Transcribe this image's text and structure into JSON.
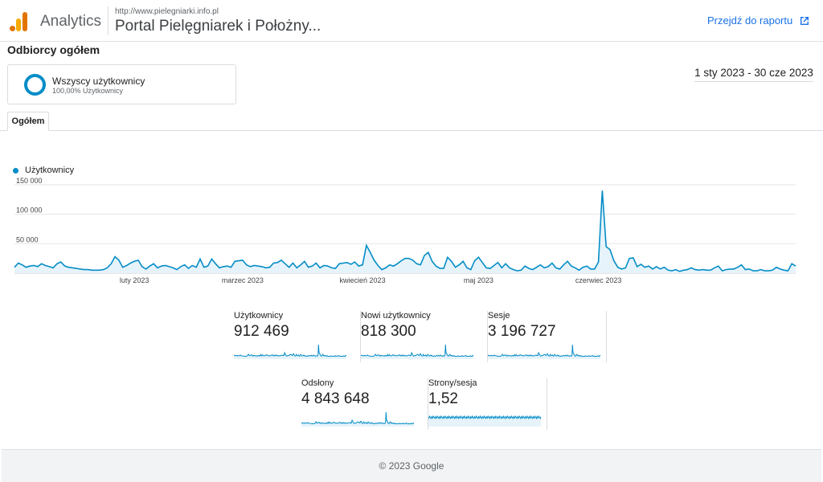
{
  "header": {
    "app_name": "Analytics",
    "site_url": "http://www.pielegniarki.info.pl",
    "site_name": "Portal Pielęgniarek i Położny...",
    "report_link": "Przejdź do raportu"
  },
  "page_title": "Odbiorcy ogółem",
  "segment": {
    "name": "Wszyscy użytkownicy",
    "sub": "100,00% Użytkownicy"
  },
  "date_range": "1 sty 2023 - 30 cze 2023",
  "tab": "Ogółem",
  "colors": {
    "accent": "#058dc7",
    "link": "#1a73e8"
  },
  "chart_data": {
    "type": "area",
    "series": [
      {
        "name": "Użytkownicy",
        "values": [
          10000,
          17000,
          14000,
          10000,
          12000,
          13000,
          11000,
          16000,
          13000,
          11000,
          9000,
          16000,
          19000,
          12000,
          10000,
          9000,
          8000,
          7000,
          6000,
          6000,
          5000,
          5000,
          5000,
          6000,
          9000,
          16000,
          28000,
          22000,
          10000,
          13000,
          17000,
          20000,
          22000,
          11000,
          7000,
          12000,
          16000,
          9000,
          12000,
          13000,
          11000,
          9000,
          6000,
          11000,
          14000,
          8000,
          13000,
          10000,
          24000,
          10000,
          12000,
          24000,
          16000,
          9000,
          11000,
          12000,
          10000,
          20000,
          21000,
          22000,
          14000,
          11000,
          13000,
          12000,
          11000,
          9000,
          10000,
          17000,
          18000,
          22000,
          16000,
          10000,
          17000,
          9000,
          14000,
          20000,
          10000,
          12000,
          17000,
          9000,
          13000,
          12000,
          9000,
          8000,
          16000,
          17000,
          18000,
          15000,
          19000,
          12000,
          14000,
          47000,
          35000,
          22000,
          13000,
          6000,
          9000,
          14000,
          12000,
          16000,
          21000,
          25000,
          25000,
          22000,
          16000,
          14000,
          30000,
          35000,
          20000,
          12000,
          8000,
          8000,
          27000,
          20000,
          10000,
          14000,
          20000,
          9000,
          6000,
          21000,
          27000,
          18000,
          9000,
          8000,
          13000,
          18000,
          9000,
          16000,
          9000,
          6000,
          4000,
          5000,
          12000,
          8000,
          6000,
          10000,
          14000,
          9000,
          11000,
          17000,
          9000,
          7000,
          14000,
          20000,
          12000,
          9000,
          5000,
          10000,
          12000,
          7000,
          7000,
          19000,
          140000,
          45000,
          40000,
          21000,
          10000,
          7000,
          9000,
          25000,
          26000,
          11000,
          15000,
          10000,
          12000,
          7000,
          11000,
          7000,
          10000,
          5000,
          4000,
          6000,
          3000,
          5000,
          6000,
          9000,
          6000,
          5000,
          6000,
          5000,
          5000,
          9000,
          12000,
          4000,
          6000,
          7000,
          7000,
          10000,
          14000,
          6000,
          7000,
          4000,
          4000,
          6000,
          4000,
          4000,
          5000,
          10000,
          7000,
          5000,
          4000,
          16000,
          12000
        ]
      }
    ],
    "x_labels": [
      "luty 2023",
      "marzec 2023",
      "kwiecień 2023",
      "maj 2023",
      "czerwiec 2023"
    ],
    "y_ticks": [
      "150 000",
      "100 000",
      "50 000"
    ],
    "ylim": [
      0,
      150000
    ],
    "grid": true,
    "legend": "top-left"
  },
  "metrics": [
    {
      "label": "Użytkownicy",
      "value": "912 469"
    },
    {
      "label": "Nowi użytkownicy",
      "value": "818 300"
    },
    {
      "label": "Sesje",
      "value": "3 196 727"
    },
    {
      "label": "Odsłony",
      "value": "4 843 648"
    },
    {
      "label": "Strony/sesja",
      "value": "1,52"
    }
  ],
  "footer": "© 2023 Google"
}
